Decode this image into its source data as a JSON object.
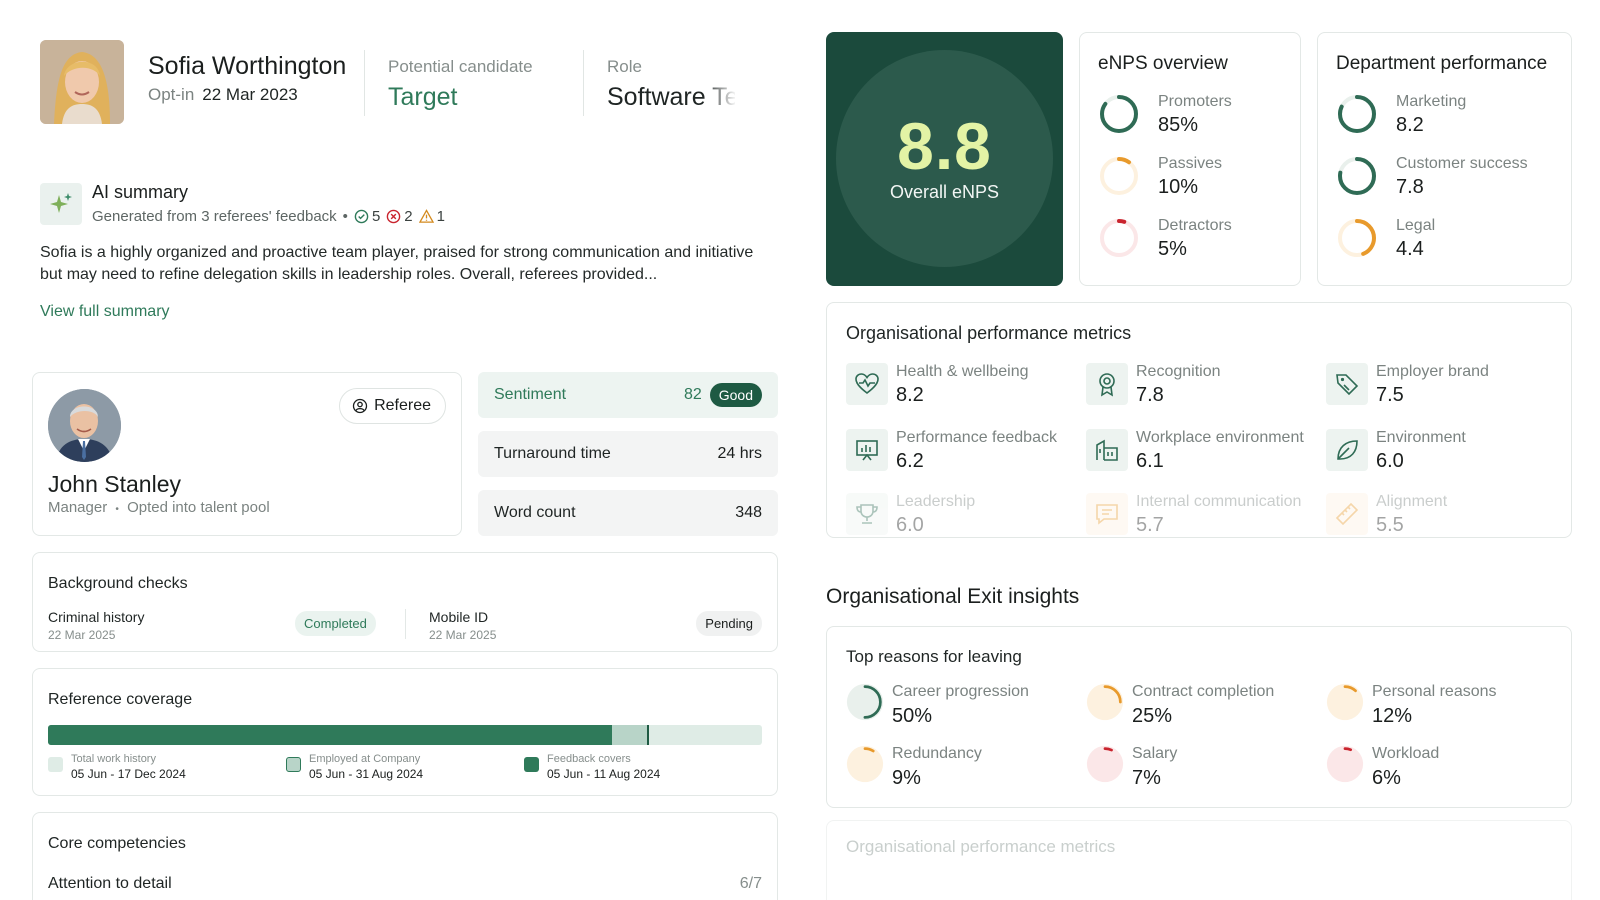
{
  "profile": {
    "name": "Sofia Worthington",
    "optin_label": "Opt-in",
    "optin_date": "22 Mar 2023",
    "candidate_label": "Potential candidate",
    "candidate_value": "Target",
    "role_label": "Role",
    "role_value": "Software Te"
  },
  "ai_summary": {
    "title": "AI summary",
    "subtitle": "Generated from 3 referees' feedback",
    "separator": "•",
    "positive_count": "5",
    "negative_count": "2",
    "warning_count": "1",
    "body": "Sofia is a highly organized and proactive team player, praised for strong communication and initiative but may need to refine delegation skills in leadership roles. Overall, referees provided...",
    "link": "View full summary"
  },
  "referee": {
    "button": "Referee",
    "name": "John Stanley",
    "role": "Manager",
    "role_sep": "•",
    "pool": "Opted into talent pool"
  },
  "stats": {
    "sentiment_label": "Sentiment",
    "sentiment_value": "82",
    "sentiment_badge": "Good",
    "turnaround_label": "Turnaround time",
    "turnaround_value": "24 hrs",
    "wordcount_label": "Word count",
    "wordcount_value": "348"
  },
  "background_checks": {
    "title": "Background checks",
    "items": [
      {
        "name": "Criminal history",
        "date": "22 Mar 2025",
        "status": "Completed"
      },
      {
        "name": "Mobile ID",
        "date": "22 Mar 2025",
        "status": "Pending"
      }
    ]
  },
  "coverage": {
    "title": "Reference coverage",
    "feedback_fraction": 0.79,
    "employed_fraction": 0.84,
    "legend": [
      {
        "label": "Total work history",
        "range": "05 Jun - 17 Dec 2024",
        "color": "#dfece6"
      },
      {
        "label": "Employed at Company",
        "range": "05 Jun - 31 Aug 2024",
        "color": "#b8d4c8"
      },
      {
        "label": "Feedback covers",
        "range": "05 Jun - 11 Aug 2024",
        "color": "#2f7a5a"
      }
    ]
  },
  "competencies": {
    "title": "Core competencies",
    "items": [
      {
        "name": "Attention to detail",
        "score": "6/7",
        "fraction": 0.857
      }
    ]
  },
  "enps": {
    "score": "8.8",
    "label": "Overall eNPS",
    "overview_title": "eNPS overview",
    "overview": [
      {
        "label": "Promoters",
        "value": "85%",
        "fraction": 0.85,
        "color": "#2f6b55"
      },
      {
        "label": "Passives",
        "value": "10%",
        "fraction": 0.1,
        "color": "#e89a2c"
      },
      {
        "label": "Detractors",
        "value": "5%",
        "fraction": 0.05,
        "color": "#c9242e"
      }
    ]
  },
  "department": {
    "title": "Department performance",
    "items": [
      {
        "label": "Marketing",
        "value": "8.2",
        "fraction": 0.82,
        "color": "#2f6b55"
      },
      {
        "label": "Customer success",
        "value": "7.8",
        "fraction": 0.78,
        "color": "#2f6b55"
      },
      {
        "label": "Legal",
        "value": "4.4",
        "fraction": 0.44,
        "color": "#e89a2c"
      }
    ]
  },
  "org_metrics": {
    "title": "Organisational performance metrics",
    "items": [
      {
        "label": "Health & wellbeing",
        "value": "8.2",
        "icon": "heart-pulse-icon"
      },
      {
        "label": "Recognition",
        "value": "7.8",
        "icon": "award-icon"
      },
      {
        "label": "Employer brand",
        "value": "7.5",
        "icon": "tag-icon"
      },
      {
        "label": "Performance feedback",
        "value": "6.2",
        "icon": "presentation-chart-icon"
      },
      {
        "label": "Workplace environment",
        "value": "6.1",
        "icon": "building-icon"
      },
      {
        "label": "Environment",
        "value": "6.0",
        "icon": "leaf-icon"
      },
      {
        "label": "Leadership",
        "value": "6.0",
        "icon": "trophy-icon"
      },
      {
        "label": "Internal communication",
        "value": "5.7",
        "icon": "message-icon"
      },
      {
        "label": "Alignment",
        "value": "5.5",
        "icon": "ruler-icon"
      }
    ]
  },
  "exit": {
    "heading": "Organisational Exit insights",
    "card_title": "Top reasons for leaving",
    "items": [
      {
        "label": "Career progression",
        "value": "50%",
        "fraction": 0.5,
        "color": "#2f6b55"
      },
      {
        "label": "Contract completion",
        "value": "25%",
        "fraction": 0.25,
        "color": "#e89a2c"
      },
      {
        "label": "Personal reasons",
        "value": "12%",
        "fraction": 0.12,
        "color": "#e89a2c"
      },
      {
        "label": "Redundancy",
        "value": "9%",
        "fraction": 0.09,
        "color": "#e89a2c"
      },
      {
        "label": "Salary",
        "value": "7%",
        "fraction": 0.07,
        "color": "#c9242e"
      },
      {
        "label": "Workload",
        "value": "6%",
        "fraction": 0.06,
        "color": "#c9242e"
      }
    ]
  },
  "ghost": {
    "title": "Organisational performance metrics"
  }
}
